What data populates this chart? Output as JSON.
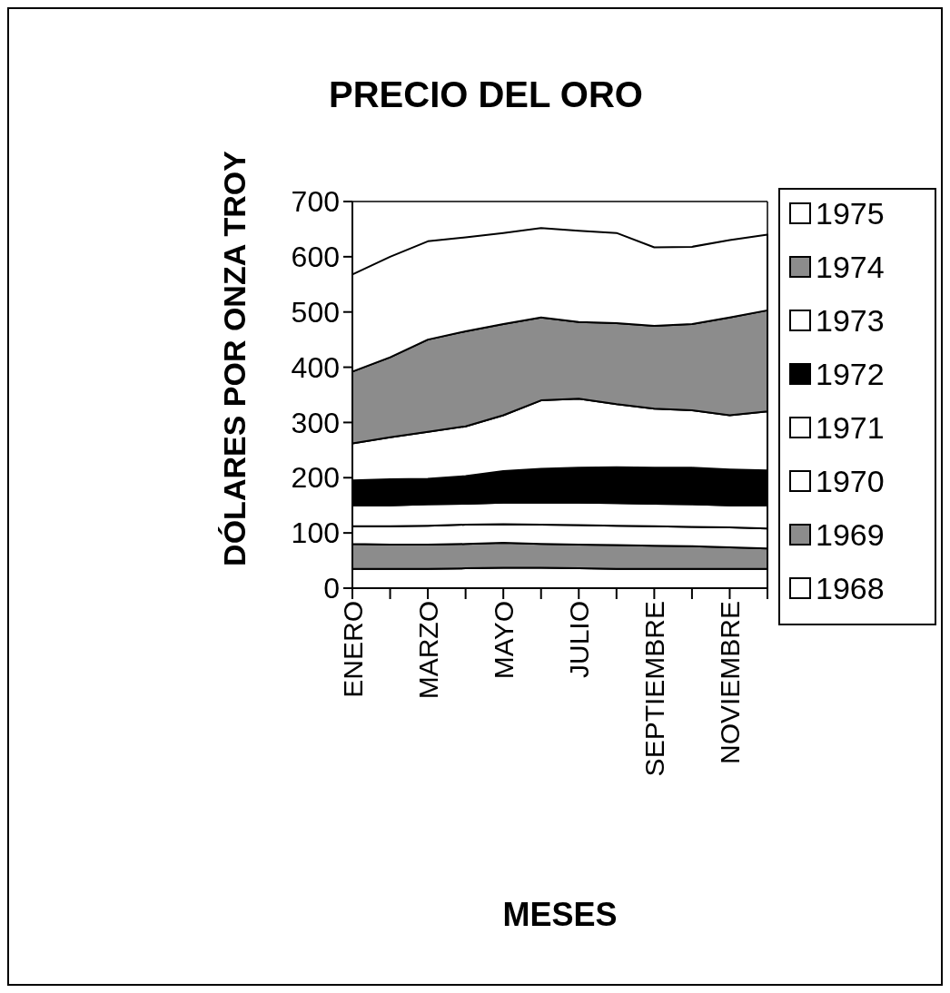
{
  "chart_data": {
    "type": "area",
    "title": "PRECIO DEL ORO",
    "xlabel": "MESES",
    "ylabel": "DÓLARES POR ONZA TROY",
    "categories": [
      "ENERO",
      null,
      "MARZO",
      null,
      "MAYO",
      null,
      "JULIO",
      null,
      "SEPTIEMBRE",
      null,
      "NOVIEMBRE",
      null
    ],
    "stacked": true,
    "ylim": [
      0,
      700
    ],
    "yticks": [
      0,
      100,
      200,
      300,
      400,
      500,
      600,
      700
    ],
    "grid": false,
    "legend": "right",
    "series": [
      {
        "name": "1968",
        "color": "#ffffff",
        "values": [
          35,
          35,
          35,
          36,
          37,
          37,
          36,
          35,
          35,
          35,
          35,
          35
        ]
      },
      {
        "name": "1969",
        "color": "#8c8c8c",
        "values": [
          45,
          44,
          44,
          44,
          45,
          43,
          43,
          43,
          42,
          41,
          39,
          37
        ]
      },
      {
        "name": "1970",
        "color": "#ffffff",
        "values": [
          32,
          33,
          34,
          35,
          34,
          35,
          35,
          35,
          35,
          35,
          36,
          36
        ]
      },
      {
        "name": "1971",
        "color": "#ffffff",
        "values": [
          38,
          38,
          39,
          38,
          39,
          40,
          41,
          41,
          41,
          41,
          40,
          42
        ]
      },
      {
        "name": "1972",
        "color": "#000000",
        "values": [
          45,
          47,
          46,
          50,
          57,
          61,
          63,
          65,
          65,
          66,
          65,
          63
        ]
      },
      {
        "name": "1973",
        "color": "#ffffff",
        "values": [
          67,
          76,
          85,
          90,
          101,
          124,
          125,
          114,
          107,
          104,
          98,
          107
        ]
      },
      {
        "name": "1974",
        "color": "#8c8c8c",
        "values": [
          130,
          145,
          167,
          172,
          165,
          150,
          139,
          147,
          150,
          156,
          177,
          183
        ]
      },
      {
        "name": "1975",
        "color": "#ffffff",
        "values": [
          176,
          182,
          178,
          170,
          165,
          162,
          165,
          163,
          142,
          140,
          140,
          137
        ]
      }
    ]
  }
}
